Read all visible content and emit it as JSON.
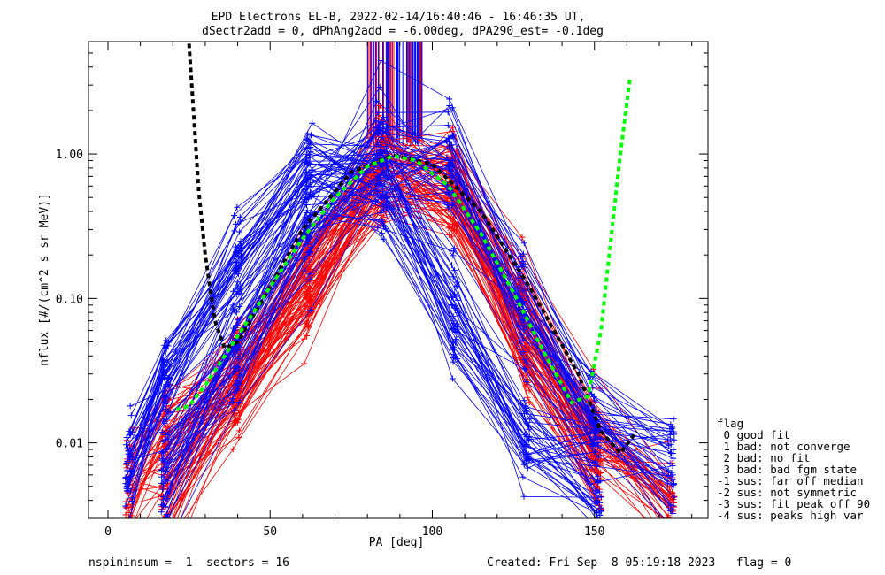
{
  "header": {
    "title_line1": "EPD Electrons EL-B, 2022-02-14/16:40:46 - 16:46:35 UT,",
    "title_line2": "dSectr2add = 0, dPhAng2add = -6.00deg, dPA290_est=  -0.1deg"
  },
  "footer": {
    "left": "nspininsum =  1  sectors = 16",
    "right": "Created: Fri Sep  8 05:19:18 2023   flag = 0"
  },
  "legend": {
    "title": "flag",
    "items": [
      " 0 good fit",
      " 1 bad: not converge",
      " 2 bad: no fit",
      " 3 bad: bad fgm state",
      "-1 sus: far off median",
      "-2 sus: not symmetric",
      "-3 sus: fit peak off 90",
      "-4 sus: peaks high var"
    ]
  },
  "colors": {
    "red_series": "#ff0000",
    "blue_series": "#0000ff",
    "black_fit": "#000000",
    "green_fit": "#00ff00",
    "axes": "#000000"
  },
  "chart_data": {
    "type": "line",
    "xlabel": "PA [deg]",
    "ylabel": "nflux [#/(cm^2 s sr MeV)]",
    "xlim": [
      -6,
      185
    ],
    "ylim": [
      0.003,
      6.0
    ],
    "yscale": "log",
    "x_ticks": [
      0,
      50,
      100,
      150
    ],
    "x_tick_labels": [
      "0",
      "50",
      "100",
      "150"
    ],
    "y_ticks": [
      0.01,
      0.1,
      1.0
    ],
    "y_tick_labels": [
      "0.01",
      "0.10",
      "1.00"
    ],
    "grid": false,
    "legend_position": "right",
    "pa_bins_ascending": [
      6.5,
      18,
      40,
      62,
      85,
      107,
      129,
      151
    ],
    "pa_bins_descending": [
      17.5,
      39.5,
      61.5,
      83.5,
      105.5,
      127.5,
      149.5,
      173.5
    ],
    "series_groups": [
      {
        "color": "red",
        "count": 80,
        "representative_nflux_ascending": [
          0.005,
          0.012,
          0.03,
          0.15,
          0.85,
          0.55,
          0.04,
          0.008
        ],
        "representative_nflux_descending": [
          0.004,
          0.025,
          0.12,
          0.75,
          0.7,
          0.09,
          0.012,
          0.004
        ]
      },
      {
        "color": "blue",
        "count": 80,
        "representative_nflux_ascending": [
          0.008,
          0.03,
          0.2,
          0.9,
          0.7,
          0.08,
          0.012,
          0.006
        ],
        "representative_nflux_descending": [
          0.006,
          0.04,
          0.3,
          0.95,
          0.8,
          0.1,
          0.015,
          0.007
        ]
      }
    ],
    "fit_black": {
      "style": "dotted",
      "x": [
        25,
        28,
        30,
        33,
        36,
        40,
        48,
        60,
        75,
        88,
        100,
        115,
        130,
        145,
        152,
        158,
        163
      ],
      "y": [
        5.8,
        0.55,
        0.2,
        0.07,
        0.045,
        0.05,
        0.1,
        0.3,
        0.75,
        0.98,
        0.85,
        0.4,
        0.12,
        0.03,
        0.012,
        0.0085,
        0.012
      ]
    },
    "fit_green": {
      "style": "dotted",
      "x": [
        21,
        25,
        30,
        40,
        50,
        60,
        70,
        80,
        88,
        95,
        105,
        115,
        125,
        135,
        143,
        148,
        152,
        155,
        158,
        161
      ],
      "y": [
        0.017,
        0.018,
        0.025,
        0.055,
        0.12,
        0.26,
        0.5,
        0.82,
        0.97,
        0.9,
        0.6,
        0.28,
        0.11,
        0.04,
        0.019,
        0.021,
        0.06,
        0.25,
        1.0,
        3.4
      ]
    }
  }
}
